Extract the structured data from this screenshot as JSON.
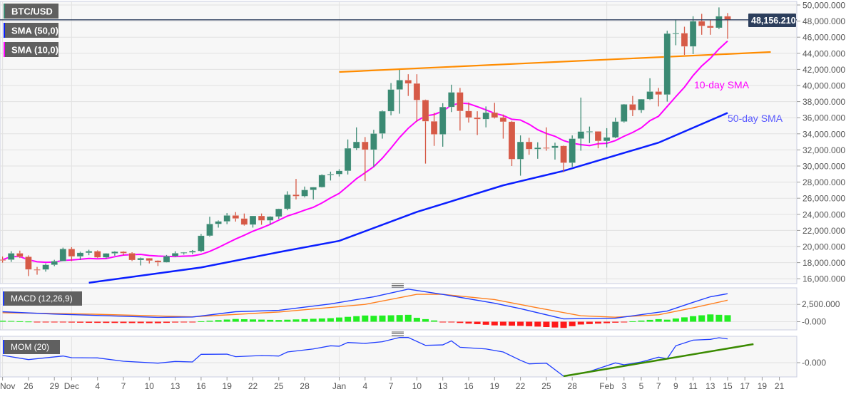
{
  "chart_data": [
    {
      "type": "candlestick",
      "symbol": "BTC/USD",
      "legend": [
        "BTC/USD",
        "SMA (50,0)",
        "SMA (10,0)"
      ],
      "current_price": "48,156.210",
      "ylim": [
        16000,
        50000
      ],
      "y_ticks": [
        "16,000.000",
        "18,000.000",
        "20,000.000",
        "22,000.000",
        "24,000.000",
        "26,000.000",
        "28,000.000",
        "30,000.000",
        "32,000.000",
        "34,000.000",
        "36,000.000",
        "38,000.000",
        "40,000.000",
        "42,000.000",
        "44,000.000",
        "46,000.000",
        "48,000.000",
        "50,000.000"
      ],
      "colors": {
        "up": "#3b8a73",
        "down": "#d65a47",
        "sma10": "#ff00ff",
        "sma50": "#0a1eff",
        "trendline": "#ff8c00",
        "price_line": "#2c3e5c"
      },
      "candles_ohlc": [
        [
          "2020-11-23",
          18370,
          18760,
          18000,
          18360
        ],
        [
          "2020-11-24",
          18360,
          19420,
          18090,
          19160
        ],
        [
          "2020-11-25",
          19160,
          19490,
          18570,
          18730
        ],
        [
          "2020-11-26",
          18730,
          18900,
          16330,
          17150
        ],
        [
          "2020-11-27",
          17150,
          17470,
          16500,
          17140
        ],
        [
          "2020-11-28",
          17140,
          17900,
          16880,
          17730
        ],
        [
          "2020-11-29",
          17730,
          18350,
          17560,
          18180
        ],
        [
          "2020-11-30",
          18180,
          19860,
          18180,
          19700
        ],
        [
          "2020-12-01",
          19700,
          19920,
          18190,
          18770
        ],
        [
          "2020-12-02",
          18770,
          19350,
          18330,
          19220
        ],
        [
          "2020-12-03",
          19220,
          19600,
          18920,
          19420
        ],
        [
          "2020-12-04",
          19420,
          19520,
          18570,
          18650
        ],
        [
          "2020-12-05",
          18650,
          19170,
          18500,
          19150
        ],
        [
          "2020-12-06",
          19150,
          19420,
          18860,
          19360
        ],
        [
          "2020-12-07",
          19360,
          19420,
          18900,
          19170
        ],
        [
          "2020-12-08",
          19170,
          19290,
          18200,
          18320
        ],
        [
          "2020-12-09",
          18320,
          18630,
          17650,
          18550
        ],
        [
          "2020-12-10",
          18550,
          18560,
          17900,
          18250
        ],
        [
          "2020-12-11",
          18250,
          18290,
          17580,
          18040
        ],
        [
          "2020-12-12",
          18040,
          18950,
          18020,
          18800
        ],
        [
          "2020-12-13",
          18800,
          19410,
          18710,
          19170
        ],
        [
          "2020-12-14",
          19170,
          19300,
          19000,
          19270
        ],
        [
          "2020-12-15",
          19270,
          19560,
          19060,
          19440
        ],
        [
          "2020-12-16",
          19440,
          21550,
          19300,
          21340
        ],
        [
          "2020-12-17",
          21340,
          23700,
          21230,
          22800
        ],
        [
          "2020-12-18",
          22800,
          23240,
          22350,
          23120
        ],
        [
          "2020-12-19",
          23120,
          24150,
          22780,
          23860
        ],
        [
          "2020-12-20",
          23860,
          24280,
          23100,
          23480
        ],
        [
          "2020-12-21",
          23480,
          24100,
          22600,
          22720
        ],
        [
          "2020-12-22",
          22720,
          23800,
          22350,
          23800
        ],
        [
          "2020-12-23",
          23800,
          24100,
          22700,
          23240
        ],
        [
          "2020-12-24",
          23240,
          23770,
          22700,
          23720
        ],
        [
          "2020-12-25",
          23720,
          24700,
          23430,
          24680
        ],
        [
          "2020-12-26",
          24680,
          26860,
          24500,
          26440
        ],
        [
          "2020-12-27",
          26440,
          28400,
          25850,
          26250
        ],
        [
          "2020-12-28",
          26250,
          27450,
          26100,
          27030
        ],
        [
          "2020-12-29",
          27030,
          27380,
          25850,
          27370
        ],
        [
          "2020-12-30",
          27370,
          28980,
          27330,
          28880
        ],
        [
          "2020-12-31",
          28880,
          29300,
          28200,
          28990
        ],
        [
          "2021-01-01",
          28990,
          29600,
          28700,
          29400
        ],
        [
          "2021-01-02",
          29400,
          33300,
          28950,
          32200
        ],
        [
          "2021-01-03",
          32200,
          34800,
          32000,
          33000
        ],
        [
          "2021-01-04",
          33000,
          33600,
          28130,
          32030
        ],
        [
          "2021-01-05",
          32030,
          34500,
          29900,
          34030
        ],
        [
          "2021-01-06",
          34030,
          36900,
          33400,
          36800
        ],
        [
          "2021-01-07",
          36800,
          40300,
          36300,
          39500
        ],
        [
          "2021-01-08",
          39500,
          41950,
          36500,
          40670
        ],
        [
          "2021-01-09",
          40670,
          41400,
          38700,
          40250
        ],
        [
          "2021-01-10",
          40250,
          41400,
          35500,
          38190
        ],
        [
          "2021-01-11",
          38190,
          38250,
          30300,
          35550
        ],
        [
          "2021-01-12",
          35550,
          36600,
          32500,
          33930
        ],
        [
          "2021-01-13",
          33930,
          37800,
          32400,
          37330
        ],
        [
          "2021-01-14",
          37330,
          40100,
          36700,
          39150
        ],
        [
          "2021-01-15",
          39150,
          39700,
          34400,
          36830
        ],
        [
          "2021-01-16",
          36830,
          37900,
          35400,
          36020
        ],
        [
          "2021-01-17",
          36020,
          36800,
          33850,
          35820
        ],
        [
          "2021-01-18",
          35820,
          37400,
          34800,
          36630
        ],
        [
          "2021-01-19",
          36630,
          37850,
          35900,
          36020
        ],
        [
          "2021-01-20",
          36020,
          36400,
          33400,
          35500
        ],
        [
          "2021-01-21",
          35500,
          35600,
          30000,
          30850
        ],
        [
          "2021-01-22",
          30850,
          33800,
          28800,
          33000
        ],
        [
          "2021-01-23",
          33000,
          33500,
          31400,
          32100
        ],
        [
          "2021-01-24",
          32100,
          32950,
          30900,
          32280
        ],
        [
          "2021-01-25",
          32280,
          34800,
          31900,
          32250
        ],
        [
          "2021-01-26",
          32250,
          32900,
          30800,
          32500
        ],
        [
          "2021-01-27",
          32500,
          32550,
          29240,
          30400
        ],
        [
          "2021-01-28",
          30400,
          33800,
          29900,
          33400
        ],
        [
          "2021-01-29",
          33400,
          38500,
          31900,
          34280
        ],
        [
          "2021-01-30",
          34280,
          34900,
          32850,
          34300
        ],
        [
          "2021-01-31",
          34300,
          34300,
          32200,
          33110
        ],
        [
          "2021-02-01",
          33110,
          34700,
          32300,
          33550
        ],
        [
          "2021-02-02",
          33550,
          36000,
          33450,
          35520
        ],
        [
          "2021-02-03",
          35520,
          37700,
          35400,
          37660
        ],
        [
          "2021-02-04",
          37660,
          38700,
          36200,
          36950
        ],
        [
          "2021-02-05",
          36950,
          38300,
          36600,
          38300
        ],
        [
          "2021-02-06",
          38300,
          40900,
          38200,
          39250
        ],
        [
          "2021-02-07",
          39250,
          39700,
          37400,
          38870
        ],
        [
          "2021-02-08",
          38870,
          46800,
          38000,
          46450
        ],
        [
          "2021-02-09",
          46450,
          48200,
          45000,
          46500
        ],
        [
          "2021-02-10",
          46500,
          47300,
          43800,
          44850
        ],
        [
          "2021-02-11",
          44850,
          48600,
          43900,
          47980
        ],
        [
          "2021-02-12",
          47980,
          48900,
          46300,
          47400
        ],
        [
          "2021-02-13",
          47400,
          48100,
          46300,
          47170
        ],
        [
          "2021-02-14",
          47170,
          49700,
          47000,
          48600
        ],
        [
          "2021-02-15",
          48600,
          49000,
          45800,
          48156.21
        ]
      ],
      "sma50": [
        [
          "2020-12-03",
          15500
        ],
        [
          "2020-12-16",
          17400
        ],
        [
          "2020-12-25",
          19300
        ],
        [
          "2021-01-01",
          20700
        ],
        [
          "2021-01-10",
          24300
        ],
        [
          "2021-01-20",
          27600
        ],
        [
          "2021-01-27",
          29400
        ],
        [
          "2021-02-07",
          32900
        ],
        [
          "2021-02-15",
          36600
        ]
      ],
      "trendline": [
        [
          "2021-01-01",
          41680
        ],
        [
          "2021-02-20",
          44160
        ]
      ],
      "annotations": [
        {
          "text": "10-day SMA",
          "color": "#ff00ff"
        },
        {
          "text": "50-day SMA",
          "color": "#5a5aff"
        }
      ]
    },
    {
      "type": "line",
      "indicator": "MACD (12,26,9)",
      "y_ticks": [
        "2,500.000",
        "-0.000"
      ],
      "colors": {
        "macd": "#1f3dff",
        "signal": "#ff7f1e",
        "hist_up": "#22ee22",
        "hist_down": "#ff1a1a"
      },
      "macd": [
        [
          "2020-11-23",
          1440
        ],
        [
          "2020-11-29",
          1100
        ],
        [
          "2020-12-11",
          620
        ],
        [
          "2020-12-15",
          680
        ],
        [
          "2020-12-20",
          1440
        ],
        [
          "2020-12-25",
          1640
        ],
        [
          "2020-12-31",
          2570
        ],
        [
          "2021-01-05",
          3600
        ],
        [
          "2021-01-09",
          4700
        ],
        [
          "2021-01-13",
          3940
        ],
        [
          "2021-01-19",
          2670
        ],
        [
          "2021-01-22",
          1880
        ],
        [
          "2021-01-27",
          410
        ],
        [
          "2021-02-02",
          510
        ],
        [
          "2021-02-08",
          1540
        ],
        [
          "2021-02-11",
          2800
        ],
        [
          "2021-02-13",
          3600
        ],
        [
          "2021-02-15",
          4040
        ]
      ],
      "signal": [
        [
          "2020-11-23",
          1300
        ],
        [
          "2020-12-03",
          1100
        ],
        [
          "2020-12-15",
          700
        ],
        [
          "2020-12-25",
          1400
        ],
        [
          "2021-01-04",
          2500
        ],
        [
          "2021-01-10",
          3950
        ],
        [
          "2021-01-13",
          3950
        ],
        [
          "2021-01-19",
          3200
        ],
        [
          "2021-01-24",
          2000
        ],
        [
          "2021-01-29",
          850
        ],
        [
          "2021-02-02",
          650
        ],
        [
          "2021-02-07",
          1000
        ],
        [
          "2021-02-11",
          2000
        ],
        [
          "2021-02-15",
          3100
        ]
      ]
    },
    {
      "type": "line",
      "indicator": "MOM (20)",
      "y_ticks": [
        "-0.000"
      ],
      "colors": {
        "mom": "#1f3dff",
        "trendline": "#3a8a00"
      },
      "mom": [
        [
          "2020-11-23",
          4900
        ],
        [
          "2020-11-26",
          2070
        ],
        [
          "2020-11-30",
          4450
        ],
        [
          "2020-12-01",
          3340
        ],
        [
          "2020-12-04",
          3180
        ],
        [
          "2020-12-07",
          950
        ],
        [
          "2020-12-11",
          -320
        ],
        [
          "2020-12-13",
          800
        ],
        [
          "2020-12-15",
          480
        ],
        [
          "2020-12-16",
          5570
        ],
        [
          "2020-12-19",
          5700
        ],
        [
          "2020-12-20",
          3980
        ],
        [
          "2020-12-23",
          4770
        ],
        [
          "2020-12-25",
          4450
        ],
        [
          "2020-12-26",
          7150
        ],
        [
          "2020-12-29",
          9200
        ],
        [
          "2020-12-31",
          11300
        ],
        [
          "2021-01-01",
          11000
        ],
        [
          "2021-01-02",
          13500
        ],
        [
          "2021-01-04",
          12900
        ],
        [
          "2021-01-06",
          14000
        ],
        [
          "2021-01-08",
          16850
        ],
        [
          "2021-01-09",
          16850
        ],
        [
          "2021-01-11",
          11600
        ],
        [
          "2021-01-13",
          11900
        ],
        [
          "2021-01-14",
          14600
        ],
        [
          "2021-01-15",
          10300
        ],
        [
          "2021-01-18",
          9200
        ],
        [
          "2021-01-20",
          7150
        ],
        [
          "2021-01-22",
          1590
        ],
        [
          "2021-01-23",
          -800
        ],
        [
          "2021-01-25",
          -320
        ],
        [
          "2021-01-27",
          -9060
        ],
        [
          "2021-01-30",
          -5900
        ],
        [
          "2021-02-02",
          -160
        ],
        [
          "2021-02-03",
          -1430
        ],
        [
          "2021-02-05",
          480
        ],
        [
          "2021-02-07",
          3660
        ],
        [
          "2021-02-08",
          2700
        ],
        [
          "2021-02-09",
          11300
        ],
        [
          "2021-02-11",
          15100
        ],
        [
          "2021-02-13",
          15600
        ],
        [
          "2021-02-14",
          16700
        ],
        [
          "2021-02-15",
          15900
        ]
      ],
      "trendline": [
        [
          "2021-01-27",
          -9060
        ],
        [
          "2021-02-18",
          12400
        ]
      ]
    }
  ],
  "x_axis": [
    [
      "Nov",
      "2020-11-23"
    ],
    [
      "26",
      "2020-11-26"
    ],
    [
      "29",
      "2020-11-29"
    ],
    [
      "Dec",
      "2020-12-01"
    ],
    [
      "4",
      "2020-12-04"
    ],
    [
      "7",
      "2020-12-07"
    ],
    [
      "10",
      "2020-12-10"
    ],
    [
      "13",
      "2020-12-13"
    ],
    [
      "16",
      "2020-12-16"
    ],
    [
      "19",
      "2020-12-19"
    ],
    [
      "22",
      "2020-12-22"
    ],
    [
      "25",
      "2020-12-25"
    ],
    [
      "28",
      "2020-12-28"
    ],
    [
      "Jan",
      "2021-01-01"
    ],
    [
      "4",
      "2021-01-04"
    ],
    [
      "7",
      "2021-01-07"
    ],
    [
      "10",
      "2021-01-10"
    ],
    [
      "13",
      "2021-01-13"
    ],
    [
      "16",
      "2021-01-16"
    ],
    [
      "19",
      "2021-01-19"
    ],
    [
      "22",
      "2021-01-22"
    ],
    [
      "25",
      "2021-01-25"
    ],
    [
      "28",
      "2021-01-28"
    ],
    [
      "Feb",
      "2021-02-01"
    ],
    [
      "3",
      "2021-02-03"
    ],
    [
      "5",
      "2021-02-05"
    ],
    [
      "7",
      "2021-02-07"
    ],
    [
      "9",
      "2021-02-09"
    ],
    [
      "11",
      "2021-02-11"
    ],
    [
      "13",
      "2021-02-13"
    ],
    [
      "15",
      "2021-02-15"
    ],
    [
      "17",
      "2021-02-17"
    ],
    [
      "19",
      "2021-02-19"
    ],
    [
      "21",
      "2021-02-21"
    ]
  ]
}
